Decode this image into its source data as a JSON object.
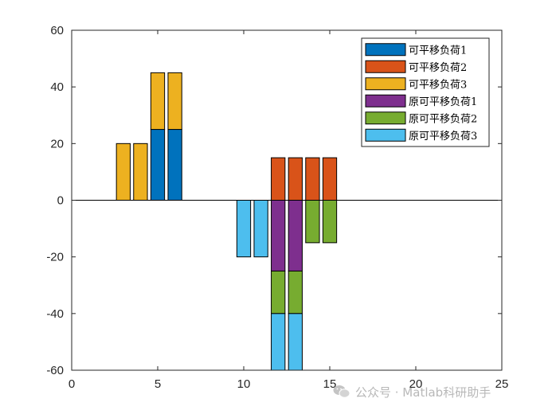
{
  "chart_data": {
    "type": "bar",
    "stacked": true,
    "bar_width": 0.8,
    "xlim": [
      0,
      25
    ],
    "ylim": [
      -60,
      60
    ],
    "xticks": [
      0,
      5,
      10,
      15,
      20,
      25
    ],
    "yticks": [
      60,
      40,
      20,
      0,
      -20,
      -40,
      -60
    ],
    "grid": false,
    "zero_line": true,
    "legend_position": "top-right",
    "series": [
      {
        "name": "可平移负荷1",
        "color": "#0072BD",
        "bars": [
          {
            "x": 5,
            "bottom": 0,
            "top": 25
          },
          {
            "x": 6,
            "bottom": 0,
            "top": 25
          }
        ]
      },
      {
        "name": "可平移负荷2",
        "color": "#D95319",
        "bars": [
          {
            "x": 12,
            "bottom": 0,
            "top": 15
          },
          {
            "x": 13,
            "bottom": 0,
            "top": 15
          },
          {
            "x": 14,
            "bottom": 0,
            "top": 15
          },
          {
            "x": 15,
            "bottom": 0,
            "top": 15
          }
        ]
      },
      {
        "name": "可平移负荷3",
        "color": "#EDB120",
        "bars": [
          {
            "x": 3,
            "bottom": 0,
            "top": 20
          },
          {
            "x": 4,
            "bottom": 0,
            "top": 20
          },
          {
            "x": 5,
            "bottom": 25,
            "top": 45
          },
          {
            "x": 6,
            "bottom": 25,
            "top": 45
          }
        ]
      },
      {
        "name": "原可平移负荷1",
        "color": "#7E2F8E",
        "bars": [
          {
            "x": 12,
            "bottom": -25,
            "top": 0
          },
          {
            "x": 13,
            "bottom": -25,
            "top": 0
          }
        ]
      },
      {
        "name": "原可平移负荷2",
        "color": "#77AC30",
        "bars": [
          {
            "x": 12,
            "bottom": -40,
            "top": -25
          },
          {
            "x": 13,
            "bottom": -40,
            "top": -25
          },
          {
            "x": 14,
            "bottom": -15,
            "top": 0
          },
          {
            "x": 15,
            "bottom": -15,
            "top": 0
          }
        ]
      },
      {
        "name": "原可平移负荷3",
        "color": "#4DBEEE",
        "bars": [
          {
            "x": 10,
            "bottom": -20,
            "top": 0
          },
          {
            "x": 11,
            "bottom": -20,
            "top": 0
          },
          {
            "x": 12,
            "bottom": -60,
            "top": -40
          },
          {
            "x": 13,
            "bottom": -60,
            "top": -40
          }
        ]
      }
    ]
  },
  "watermark": {
    "icon": "wechat-icon",
    "text": "公众号 · Matlab科研助手"
  }
}
